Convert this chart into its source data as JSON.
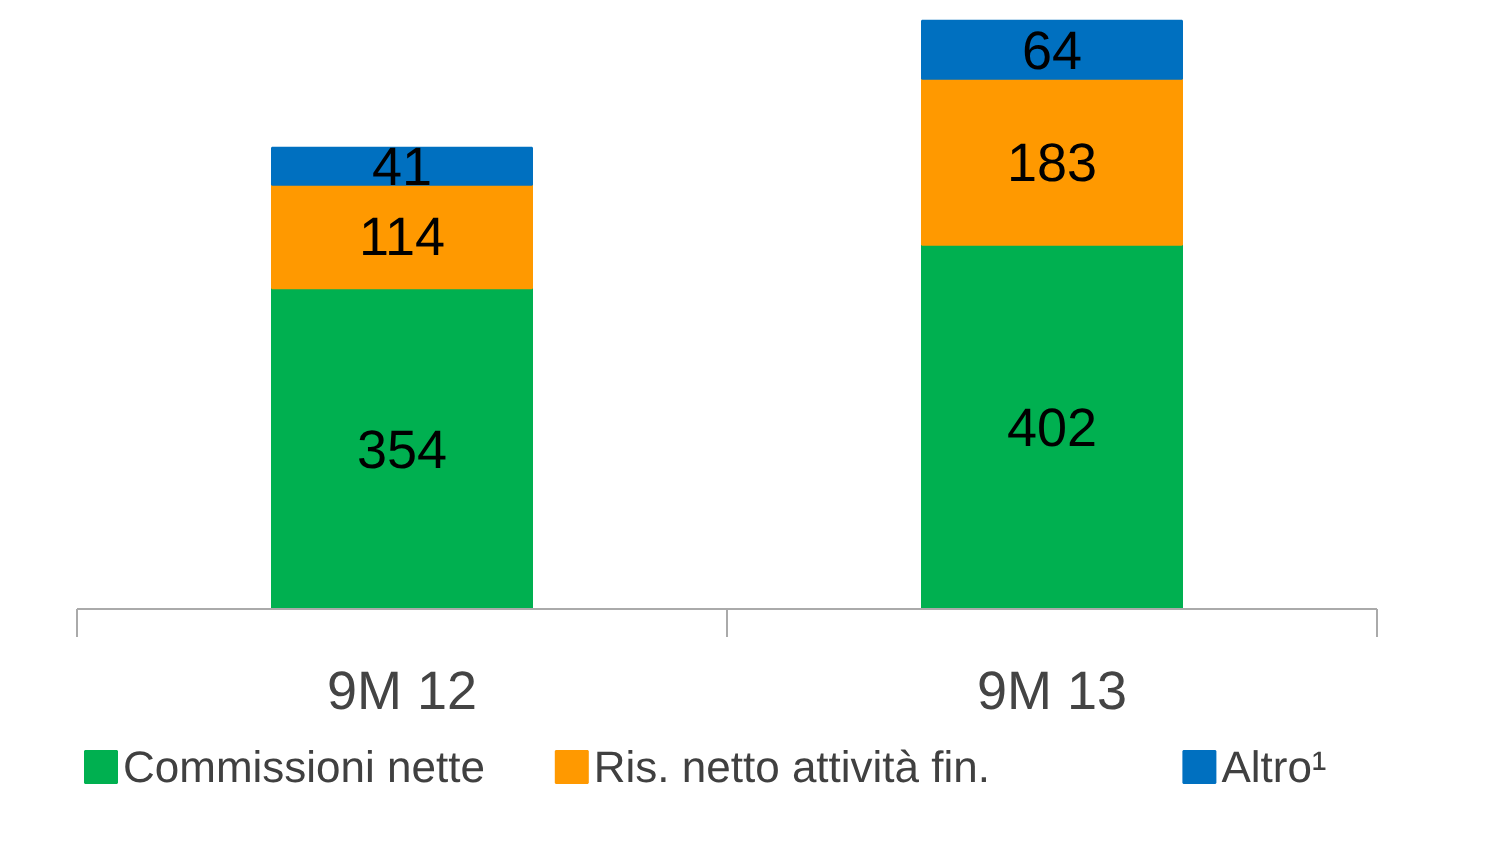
{
  "chart_data": {
    "type": "bar",
    "stacked": true,
    "categories": [
      "9M 12",
      "9M 13"
    ],
    "series": [
      {
        "name": "Commissioni nette",
        "color": "#00b050",
        "values": [
          354,
          402
        ]
      },
      {
        "name": "Ris. netto attività fin.",
        "color": "#ff9900",
        "values": [
          114,
          183
        ]
      },
      {
        "name": "Altro¹",
        "color": "#0070c0",
        "values": [
          41,
          64
        ]
      }
    ],
    "data_labels": true,
    "legend": "bottom"
  }
}
